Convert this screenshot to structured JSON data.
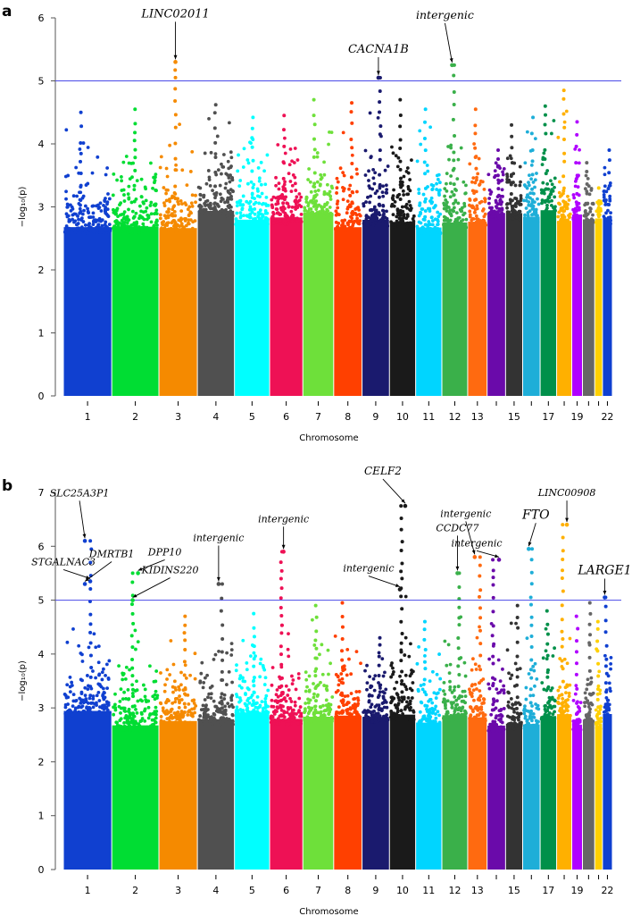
{
  "chart_data": [
    {
      "type": "scatter",
      "subtype": "manhattan",
      "panel": "a",
      "xlabel": "Chromosome",
      "ylabel": "−log₁₀(p)",
      "ylim": [
        0,
        6
      ],
      "yticks": [
        "0",
        "1",
        "2",
        "3",
        "4",
        "5",
        "6"
      ],
      "threshold": 5,
      "threshold_color": "#4a4ae8",
      "chromosome_max": [
        4.5,
        4.55,
        5.3,
        4.62,
        4.42,
        4.45,
        4.7,
        4.65,
        5.05,
        4.7,
        4.55,
        5.25,
        4.55,
        3.9,
        4.3,
        4.42,
        4.6,
        4.85,
        4.35,
        3.7,
        3.3,
        3.9
      ],
      "annotations": [
        {
          "label": "LINC02011",
          "chrom": 3,
          "value": 5.3
        },
        {
          "label": "CACNA1B",
          "chrom": 9,
          "value": 5.05
        },
        {
          "label": "intergenic",
          "chrom": 12,
          "value": 5.25
        }
      ]
    },
    {
      "type": "scatter",
      "subtype": "manhattan",
      "panel": "b",
      "xlabel": "Chromosome",
      "ylabel": "−log₁₀(p)",
      "ylim": [
        0,
        7
      ],
      "yticks": [
        "0",
        "1",
        "2",
        "3",
        "4",
        "5",
        "6",
        "7"
      ],
      "threshold": 5,
      "threshold_color": "#4a4ae8",
      "chromosome_max": [
        6.1,
        5.5,
        4.7,
        5.3,
        4.75,
        5.9,
        4.9,
        4.95,
        4.3,
        6.75,
        4.6,
        5.5,
        5.8,
        5.75,
        4.9,
        5.95,
        4.8,
        6.4,
        4.7,
        4.95,
        4.6,
        5.05
      ],
      "annotations": [
        {
          "label": "SLC25A3P1",
          "chrom": 1,
          "value": 6.1
        },
        {
          "label": "STGALNAC3",
          "chrom": 1,
          "value": 5.35
        },
        {
          "label": "DMRTB1",
          "chrom": 1,
          "value": 5.3
        },
        {
          "label": "DPP10",
          "chrom": 2,
          "value": 5.5
        },
        {
          "label": "KIDINS220",
          "chrom": 2,
          "value": 5.0
        },
        {
          "label": "intergenic",
          "chrom": 4,
          "value": 5.3
        },
        {
          "label": "intergenic",
          "chrom": 6,
          "value": 5.9
        },
        {
          "label": "CELF2",
          "chrom": 10,
          "value": 6.75
        },
        {
          "label": "intergenic",
          "chrom": 10,
          "value": 5.2
        },
        {
          "label": "CCDC77",
          "chrom": 12,
          "value": 5.5
        },
        {
          "label": "intergenic",
          "chrom": 13,
          "value": 5.8
        },
        {
          "label": "intergenic",
          "chrom": 14,
          "value": 5.75
        },
        {
          "label": "FTO",
          "chrom": 16,
          "value": 5.95
        },
        {
          "label": "LINC00908",
          "chrom": 18,
          "value": 6.4
        },
        {
          "label": "LARGE1",
          "chrom": 22,
          "value": 5.05
        }
      ]
    }
  ],
  "chromosomes": [
    "1",
    "2",
    "3",
    "4",
    "5",
    "6",
    "7",
    "8",
    "9",
    "10",
    "11",
    "12",
    "13",
    "14",
    "15",
    "16",
    "17",
    "18",
    "19",
    "20",
    "21",
    "22"
  ],
  "tick_labels": [
    "1",
    "2",
    "3",
    "4",
    "5",
    "6",
    "7",
    "8",
    "9",
    "10",
    "11",
    "12",
    "13",
    "",
    "15",
    "",
    "17",
    "",
    "19",
    "",
    "",
    "22"
  ],
  "chromosome_lengths_mb": [
    249,
    243,
    198,
    191,
    181,
    171,
    159,
    146,
    141,
    135,
    135,
    133,
    100,
    95,
    88,
    90,
    85,
    78,
    55,
    63,
    40,
    51
  ],
  "colors": [
    "#1040d0",
    "#00dd33",
    "#f58a00",
    "#505050",
    "#00ffff",
    "#ee1155",
    "#6ee03a",
    "#ff4000",
    "#1a1a6e",
    "#1a1a1a",
    "#00d5ff",
    "#3ab04a",
    "#ff6a10",
    "#6a0aaa",
    "#333333",
    "#1eaed8",
    "#00904a",
    "#ffb000",
    "#b000ff",
    "#666666",
    "#ffd000",
    "#1040d0"
  ]
}
